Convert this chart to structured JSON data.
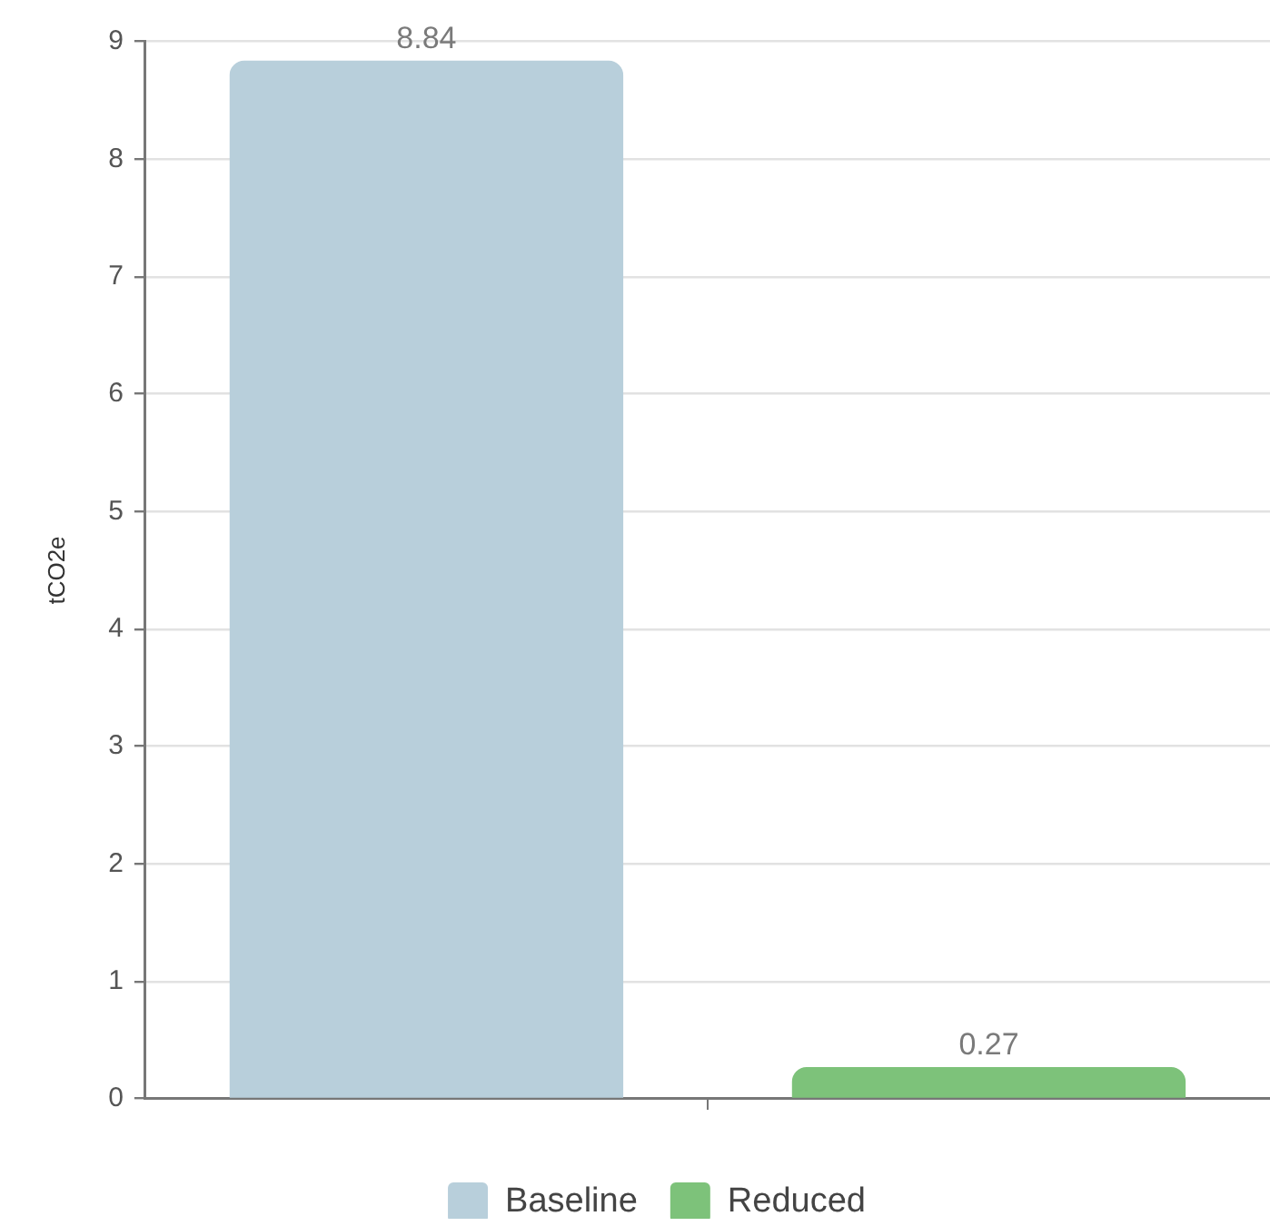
{
  "chart_data": {
    "type": "bar",
    "categories": [
      null
    ],
    "series": [
      {
        "name": "Baseline",
        "color": "#b8cfdb",
        "values": [
          8.84
        ]
      },
      {
        "name": "Reduced",
        "color": "#7dc27a",
        "values": [
          0.27
        ]
      }
    ],
    "ylabel": "tCO2e",
    "ylim": [
      0,
      9
    ],
    "yticks": [
      0,
      1,
      2,
      3,
      4,
      5,
      6,
      7,
      8,
      9
    ],
    "grid": "y",
    "legend": "bottom",
    "data_labels": true
  }
}
